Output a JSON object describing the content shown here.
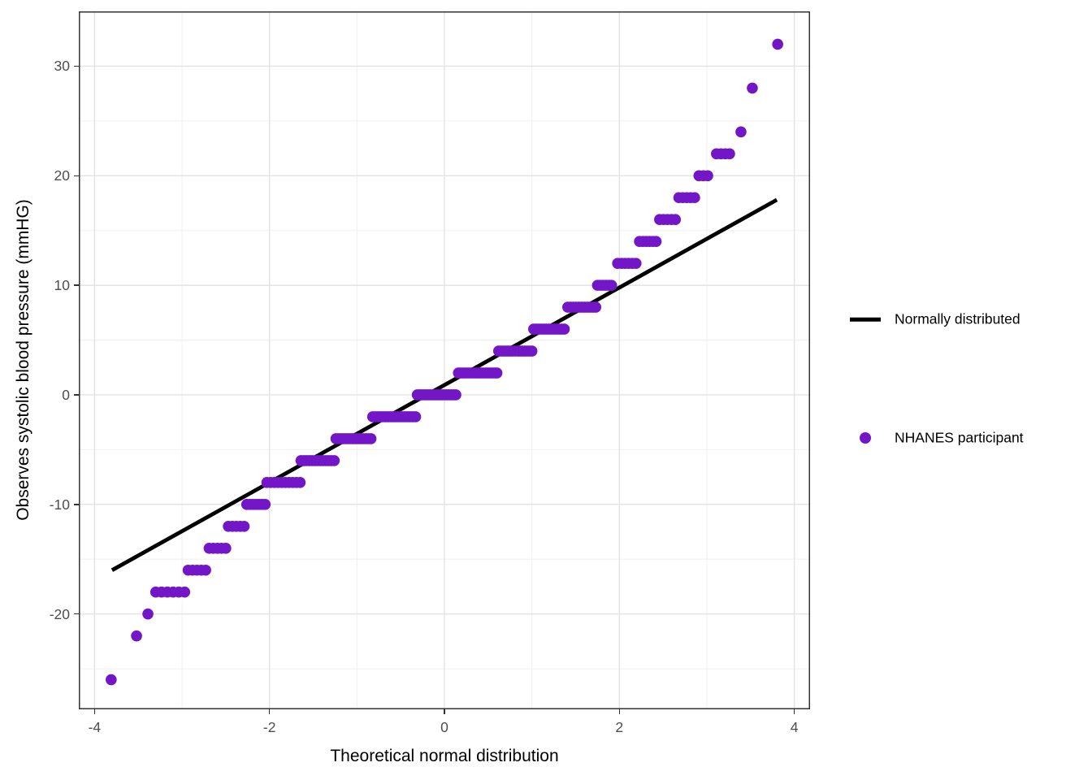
{
  "chart_data": {
    "type": "scatter",
    "title": "",
    "xlabel": "Theoretical normal distribution",
    "ylabel": "Observes systolic blood pressure (mmHG)",
    "xlim": [
      -4.18,
      4.18
    ],
    "ylim": [
      -28.7,
      35.0
    ],
    "x_major_ticks": [
      -4,
      -2,
      0,
      2,
      4
    ],
    "y_major_ticks": [
      -20,
      -10,
      0,
      10,
      20,
      30
    ],
    "x_minor_ticks": [
      -3,
      -1,
      1,
      3
    ],
    "y_minor_ticks": [
      -25,
      -15,
      -5,
      5,
      15,
      25
    ],
    "grid": true,
    "legend_position": "right",
    "line_series": {
      "name": "Normally distributed",
      "color": "#000000",
      "x1": -3.8,
      "y1": -16.0,
      "x2": 3.8,
      "y2": 17.8
    },
    "point_series": {
      "name": "NHANES participant",
      "color": "#7316C8",
      "note": "clusters of overlapping points: [y_value, x_start, x_end, n_points]",
      "clusters": [
        [
          -26,
          -3.81,
          -3.81,
          1
        ],
        [
          -22,
          -3.52,
          -3.52,
          1
        ],
        [
          -20,
          -3.39,
          -3.39,
          1
        ],
        [
          -18,
          -3.3,
          -2.97,
          6
        ],
        [
          -16,
          -2.93,
          -2.73,
          5
        ],
        [
          -14,
          -2.69,
          -2.5,
          5
        ],
        [
          -12,
          -2.47,
          -2.29,
          5
        ],
        [
          -10,
          -2.26,
          -2.05,
          7
        ],
        [
          -8,
          -2.03,
          -1.65,
          10
        ],
        [
          -6,
          -1.64,
          -1.26,
          13
        ],
        [
          -4,
          -1.24,
          -0.84,
          15
        ],
        [
          -2,
          -0.82,
          -0.33,
          18
        ],
        [
          0,
          -0.31,
          0.13,
          18
        ],
        [
          2,
          0.16,
          0.6,
          18
        ],
        [
          4,
          0.62,
          1.0,
          15
        ],
        [
          6,
          1.02,
          1.37,
          13
        ],
        [
          8,
          1.41,
          1.73,
          11
        ],
        [
          10,
          1.75,
          1.91,
          6
        ],
        [
          12,
          1.98,
          2.19,
          6
        ],
        [
          14,
          2.23,
          2.42,
          6
        ],
        [
          16,
          2.46,
          2.64,
          5
        ],
        [
          18,
          2.68,
          2.86,
          5
        ],
        [
          20,
          2.91,
          3.01,
          3
        ],
        [
          22,
          3.11,
          3.26,
          4
        ],
        [
          24,
          3.39,
          3.39,
          1
        ],
        [
          28,
          3.52,
          3.52,
          1
        ],
        [
          32,
          3.81,
          3.81,
          1
        ]
      ]
    }
  },
  "legend": {
    "items": [
      {
        "label": "Normally distributed",
        "type": "line",
        "color": "#000000"
      },
      {
        "label": "NHANES participant",
        "type": "point",
        "color": "#7316C8"
      }
    ]
  },
  "colors": {
    "background": "#ffffff",
    "panel_border": "#333333",
    "grid_major": "#e3e3e3",
    "grid_minor": "#f0f0f0",
    "tick_text": "#4d4d4d",
    "axis_title": "#000000",
    "point": "#7316C8",
    "line": "#000000"
  }
}
